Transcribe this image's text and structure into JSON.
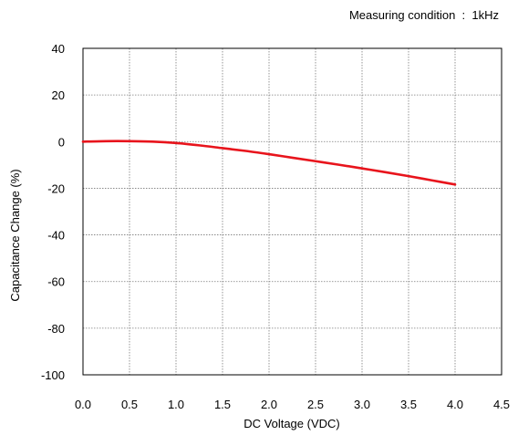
{
  "chart_data": {
    "type": "line",
    "title": "",
    "annotation": "Measuring condition  :  1kHz",
    "xlabel": "DC Voltage (VDC)",
    "ylabel": "Capacitance Change (%)",
    "xlim": [
      0.0,
      4.5
    ],
    "ylim": [
      -100,
      40
    ],
    "xticks": [
      0.0,
      0.5,
      1.0,
      1.5,
      2.0,
      2.5,
      3.0,
      3.5,
      4.0,
      4.5
    ],
    "xtick_labels": [
      "0.0",
      "0.5",
      "1.0",
      "1.5",
      "2.0",
      "2.5",
      "3.0",
      "3.5",
      "4.0",
      "4.5"
    ],
    "yticks": [
      40,
      20,
      0,
      -20,
      -40,
      -60,
      -80,
      -100
    ],
    "ytick_labels": [
      "40",
      "20",
      "0",
      "-20",
      "-40",
      "-60",
      "-80",
      "-100"
    ],
    "grid": true,
    "legend": "none",
    "series": [
      {
        "color": "#e8141c",
        "x": [
          0.0,
          0.25,
          0.5,
          0.75,
          1.0,
          1.25,
          1.5,
          1.75,
          2.0,
          2.25,
          2.5,
          2.75,
          3.0,
          3.25,
          3.5,
          3.75,
          4.0
        ],
        "y": [
          0.0,
          0.2,
          0.2,
          0.0,
          -0.6,
          -1.6,
          -2.8,
          -4.0,
          -5.4,
          -6.9,
          -8.4,
          -9.9,
          -11.5,
          -13.1,
          -14.8,
          -16.6,
          -18.4
        ]
      }
    ]
  }
}
